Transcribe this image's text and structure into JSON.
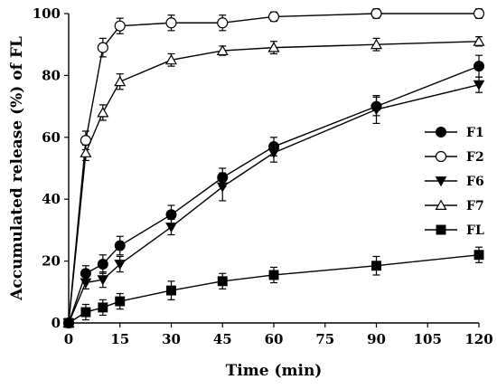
{
  "chart_data": {
    "type": "line",
    "title": "",
    "xlabel": "Time (min)",
    "ylabel": "Accumulated release (%) of FL",
    "xlim": [
      0,
      120
    ],
    "ylim": [
      0,
      100
    ],
    "xticks": [
      0,
      15,
      30,
      45,
      60,
      75,
      90,
      105,
      120
    ],
    "yticks": [
      0,
      20,
      40,
      60,
      80,
      100
    ],
    "x": [
      0,
      5,
      10,
      15,
      30,
      45,
      60,
      90,
      120
    ],
    "grid": false,
    "legend_position": "right",
    "series": [
      {
        "name": "F1",
        "marker": "circle-filled",
        "values": [
          0,
          16,
          19,
          25,
          35,
          47,
          57,
          70,
          83
        ],
        "errors": [
          0,
          2.5,
          3,
          3,
          3,
          3,
          3,
          3,
          3.5
        ]
      },
      {
        "name": "F2",
        "marker": "circle-open",
        "values": [
          0,
          59,
          89,
          96,
          97,
          97,
          99,
          100,
          100
        ],
        "errors": [
          0,
          3,
          3,
          2.5,
          2.5,
          2.5,
          1.5,
          1.5,
          1.5
        ]
      },
      {
        "name": "F6",
        "marker": "triangle-down-filled",
        "values": [
          0,
          13,
          14,
          19,
          31,
          44,
          55,
          69,
          77
        ],
        "errors": [
          0,
          2,
          2.5,
          2.5,
          2.5,
          4.5,
          3,
          4.5,
          2.5
        ]
      },
      {
        "name": "F7",
        "marker": "triangle-up-open",
        "values": [
          0,
          55,
          68,
          78,
          85,
          88,
          89,
          90,
          91
        ],
        "errors": [
          0,
          2.5,
          2.5,
          2.5,
          2,
          1.5,
          2,
          2,
          1.5
        ]
      },
      {
        "name": "FL",
        "marker": "square-filled",
        "values": [
          0,
          3.5,
          5,
          7,
          10.5,
          13.5,
          15.5,
          18.5,
          22
        ],
        "errors": [
          0,
          2.5,
          2.5,
          2.5,
          3,
          2.5,
          2.5,
          3,
          2.5
        ]
      }
    ]
  }
}
